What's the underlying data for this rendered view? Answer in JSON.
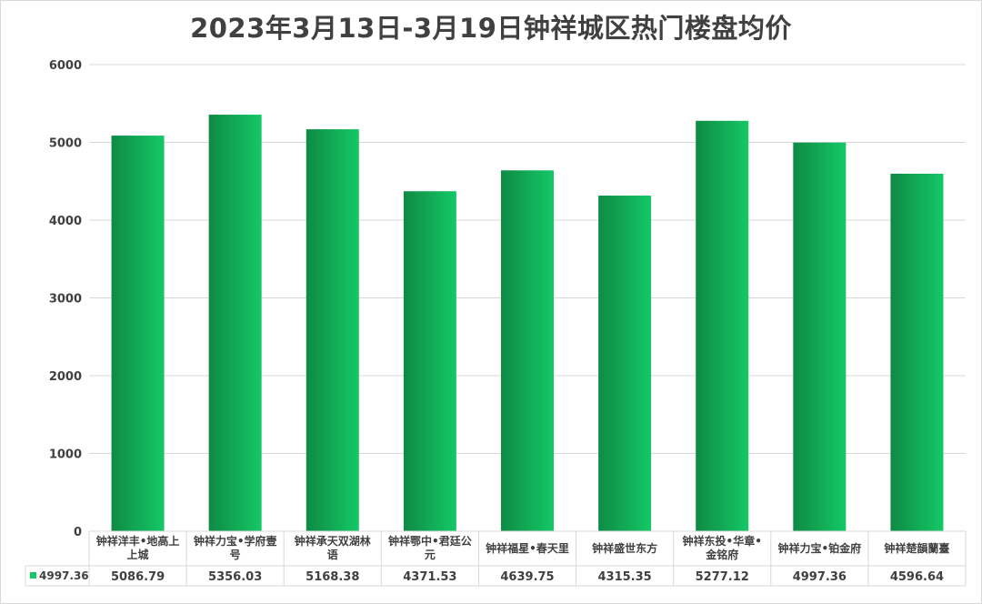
{
  "chart_data": {
    "type": "bar",
    "title": "2023年3月13日-3月19日钟祥城区热门楼盘均价",
    "categories": [
      [
        "钟祥洋丰•地高上",
        "上城"
      ],
      [
        "钟祥力宝•学府壹",
        "号"
      ],
      [
        "钟祥承天双湖林",
        "语"
      ],
      [
        "钟祥鄂中•君廷公",
        "元"
      ],
      [
        "钟祥福星•春天里"
      ],
      [
        "钟祥盛世东方"
      ],
      [
        "钟祥东投•华章•",
        "金铭府"
      ],
      [
        "钟祥力宝•铂金府"
      ],
      [
        "钟祥楚韻蘭臺"
      ]
    ],
    "series": [
      {
        "name": "4997.36",
        "values": [
          5086.79,
          5356.03,
          5168.38,
          4371.53,
          4639.75,
          4315.35,
          5277.12,
          4997.36,
          4596.64
        ],
        "labels": [
          "5086.79",
          "5356.03",
          "5168.38",
          "4371.53",
          "4639.75",
          "4315.35",
          "5277.12",
          "4997.36",
          "4596.64"
        ]
      }
    ],
    "yticks": [
      "0",
      "1000",
      "2000",
      "3000",
      "4000",
      "5000",
      "6000"
    ],
    "ylim": [
      0,
      6000
    ],
    "xlabel": "",
    "ylabel": "",
    "grid": true,
    "legend": "data-table-left",
    "bar_color_dark": "#0f8a45",
    "bar_color_light": "#14c866",
    "grid_color": "#d9d9d9",
    "text_color": "#404040"
  }
}
